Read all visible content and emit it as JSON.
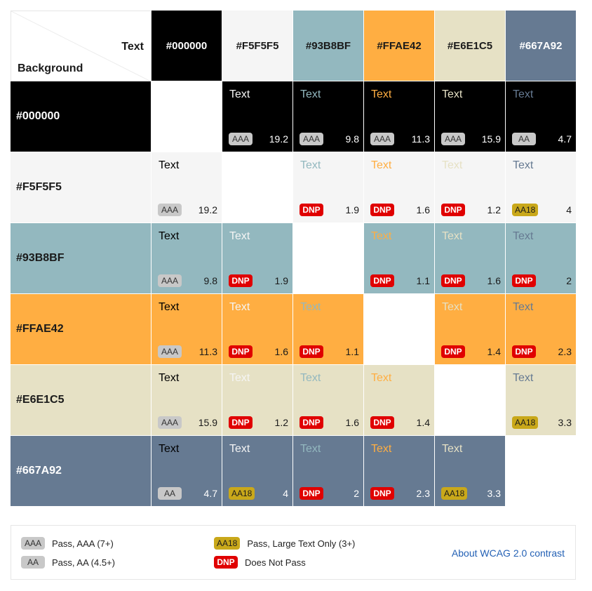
{
  "header": {
    "text_label": "Text",
    "background_label": "Background"
  },
  "colors": [
    {
      "hex": "#000000",
      "color": "#000000",
      "label_color": "#ffffff"
    },
    {
      "hex": "#F5F5F5",
      "color": "#F5F5F5",
      "label_color": "#1a1a1a"
    },
    {
      "hex": "#93B8BF",
      "color": "#93B8BF",
      "label_color": "#1a1a1a"
    },
    {
      "hex": "#FFAE42",
      "color": "#FFAE42",
      "label_color": "#1a1a1a"
    },
    {
      "hex": "#E6E1C5",
      "color": "#E6E1C5",
      "label_color": "#1a1a1a"
    },
    {
      "hex": "#667A92",
      "color": "#667A92",
      "label_color": "#ffffff"
    }
  ],
  "sample_text": "Text",
  "matrix": [
    [
      null,
      {
        "badge": "AAA",
        "ratio": "19.2"
      },
      {
        "badge": "AAA",
        "ratio": "9.8"
      },
      {
        "badge": "AAA",
        "ratio": "11.3"
      },
      {
        "badge": "AAA",
        "ratio": "15.9"
      },
      {
        "badge": "AA",
        "ratio": "4.7"
      }
    ],
    [
      {
        "badge": "AAA",
        "ratio": "19.2"
      },
      null,
      {
        "badge": "DNP",
        "ratio": "1.9"
      },
      {
        "badge": "DNP",
        "ratio": "1.6"
      },
      {
        "badge": "DNP",
        "ratio": "1.2"
      },
      {
        "badge": "AA18",
        "ratio": "4"
      }
    ],
    [
      {
        "badge": "AAA",
        "ratio": "9.8"
      },
      {
        "badge": "DNP",
        "ratio": "1.9"
      },
      null,
      {
        "badge": "DNP",
        "ratio": "1.1"
      },
      {
        "badge": "DNP",
        "ratio": "1.6"
      },
      {
        "badge": "DNP",
        "ratio": "2"
      }
    ],
    [
      {
        "badge": "AAA",
        "ratio": "11.3"
      },
      {
        "badge": "DNP",
        "ratio": "1.6"
      },
      {
        "badge": "DNP",
        "ratio": "1.1"
      },
      null,
      {
        "badge": "DNP",
        "ratio": "1.4"
      },
      {
        "badge": "DNP",
        "ratio": "2.3"
      }
    ],
    [
      {
        "badge": "AAA",
        "ratio": "15.9"
      },
      {
        "badge": "DNP",
        "ratio": "1.2"
      },
      {
        "badge": "DNP",
        "ratio": "1.6"
      },
      {
        "badge": "DNP",
        "ratio": "1.4"
      },
      null,
      {
        "badge": "AA18",
        "ratio": "3.3"
      }
    ],
    [
      {
        "badge": "AA",
        "ratio": "4.7"
      },
      {
        "badge": "AA18",
        "ratio": "4"
      },
      {
        "badge": "DNP",
        "ratio": "2"
      },
      {
        "badge": "DNP",
        "ratio": "2.3"
      },
      {
        "badge": "AA18",
        "ratio": "3.3"
      },
      null
    ]
  ],
  "legend": {
    "aaa": {
      "badge": "AAA",
      "label": "Pass, AAA (7+)"
    },
    "aa": {
      "badge": "AA",
      "label": "Pass, AA (4.5+)"
    },
    "aa18": {
      "badge": "AA18",
      "label": "Pass, Large Text Only (3+)"
    },
    "dnp": {
      "badge": "DNP",
      "label": "Does Not Pass"
    },
    "link": "About WCAG 2.0 contrast"
  }
}
